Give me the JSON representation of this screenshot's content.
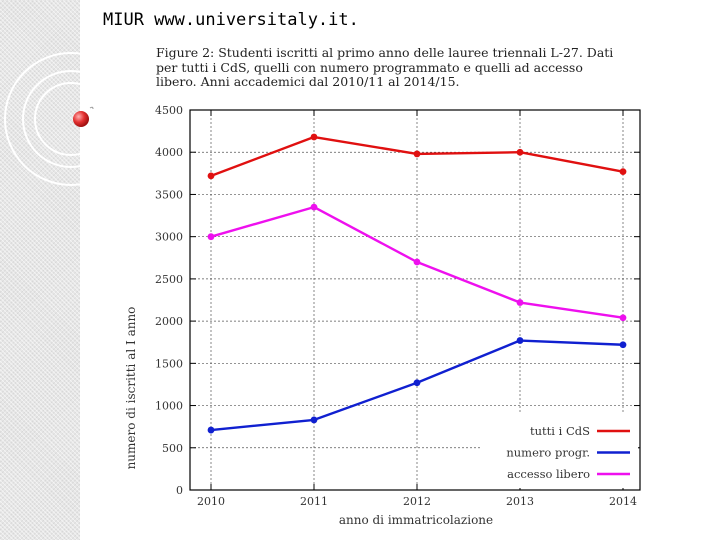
{
  "slide": {
    "title": "MIUR www.universitaly.it.",
    "caption": "Figure 2: Studenti iscritti al primo anno delle lauree triennali L-27. Dati per tutti i CdS, quelli con numero programmato e quelli ad accesso libero. Anni accademici dal 2010/11 al 2014/15."
  },
  "chart_data": {
    "type": "line",
    "categories": [
      "2010",
      "2011",
      "2012",
      "2013",
      "2014"
    ],
    "series": [
      {
        "name": "tutti i CdS",
        "color": "#e01010",
        "values": [
          3720,
          4180,
          3980,
          4000,
          3770
        ]
      },
      {
        "name": "numero progr.",
        "color": "#1020d0",
        "values": [
          710,
          830,
          1270,
          1770,
          1720
        ]
      },
      {
        "name": "accesso libero",
        "color": "#ee10ee",
        "values": [
          3000,
          3350,
          2700,
          2220,
          2040
        ]
      }
    ],
    "xlabel": "anno di immatricolazione",
    "ylabel": "numero di iscritti al I anno",
    "ylim": [
      0,
      4500
    ],
    "yticks": [
      "0",
      "500",
      "1000",
      "1500",
      "2000",
      "2500",
      "3000",
      "3500",
      "4000",
      "4500"
    ],
    "grid": true,
    "legend": "bottom-right"
  }
}
